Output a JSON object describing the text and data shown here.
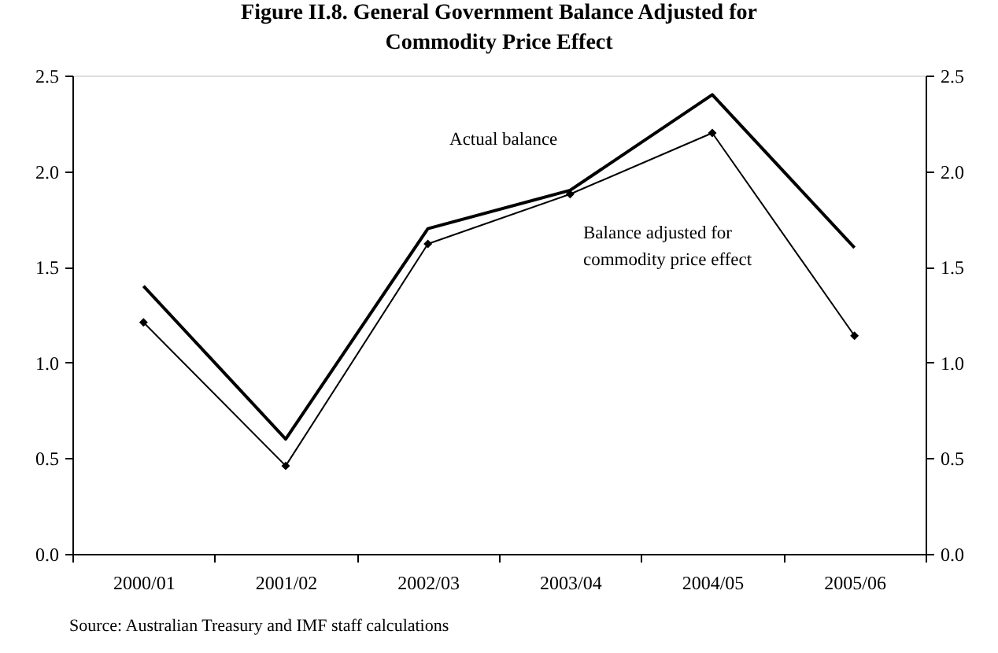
{
  "chart_data": {
    "type": "line",
    "title": [
      "Figure II.8. General Government Balance Adjusted for",
      "Commodity Price Effect"
    ],
    "categories": [
      "2000/01",
      "2001/02",
      "2002/03",
      "2003/04",
      "2004/05",
      "2005/06"
    ],
    "series": [
      {
        "name": "Actual balance",
        "color": "#000000",
        "values": [
          1.4,
          0.6,
          1.7,
          1.9,
          2.4,
          1.6
        ],
        "marker": "none",
        "line_style": "solid"
      },
      {
        "name": "Balance adjusted for commodity price effect",
        "color": "#000000",
        "values": [
          1.21,
          0.46,
          1.62,
          1.88,
          2.2,
          1.14
        ],
        "marker": "diamond",
        "line_style": "solid"
      }
    ],
    "ylim": [
      0,
      2.5
    ],
    "yticks": [
      {
        "value": 0,
        "label": "0.0"
      },
      {
        "value": 0.5,
        "label": "0.5"
      },
      {
        "value": 1,
        "label": "1.0"
      },
      {
        "value": 1.5,
        "label": "1.5"
      },
      {
        "value": 2,
        "label": "2.0"
      },
      {
        "value": 2.5,
        "label": "2.5"
      }
    ],
    "y2lim": [
      0,
      2.5
    ],
    "y2ticks": [
      {
        "value": 0,
        "label": "0.0"
      },
      {
        "value": 0.5,
        "label": "0.5"
      },
      {
        "value": 1,
        "label": "1.0"
      },
      {
        "value": 1.5,
        "label": "1.5"
      },
      {
        "value": 2,
        "label": "2.0"
      },
      {
        "value": 2.5,
        "label": "2.5"
      }
    ],
    "grid": false,
    "legend": false,
    "annotations": [
      "Source: Australian Treasury and IMF staff calculations"
    ]
  }
}
